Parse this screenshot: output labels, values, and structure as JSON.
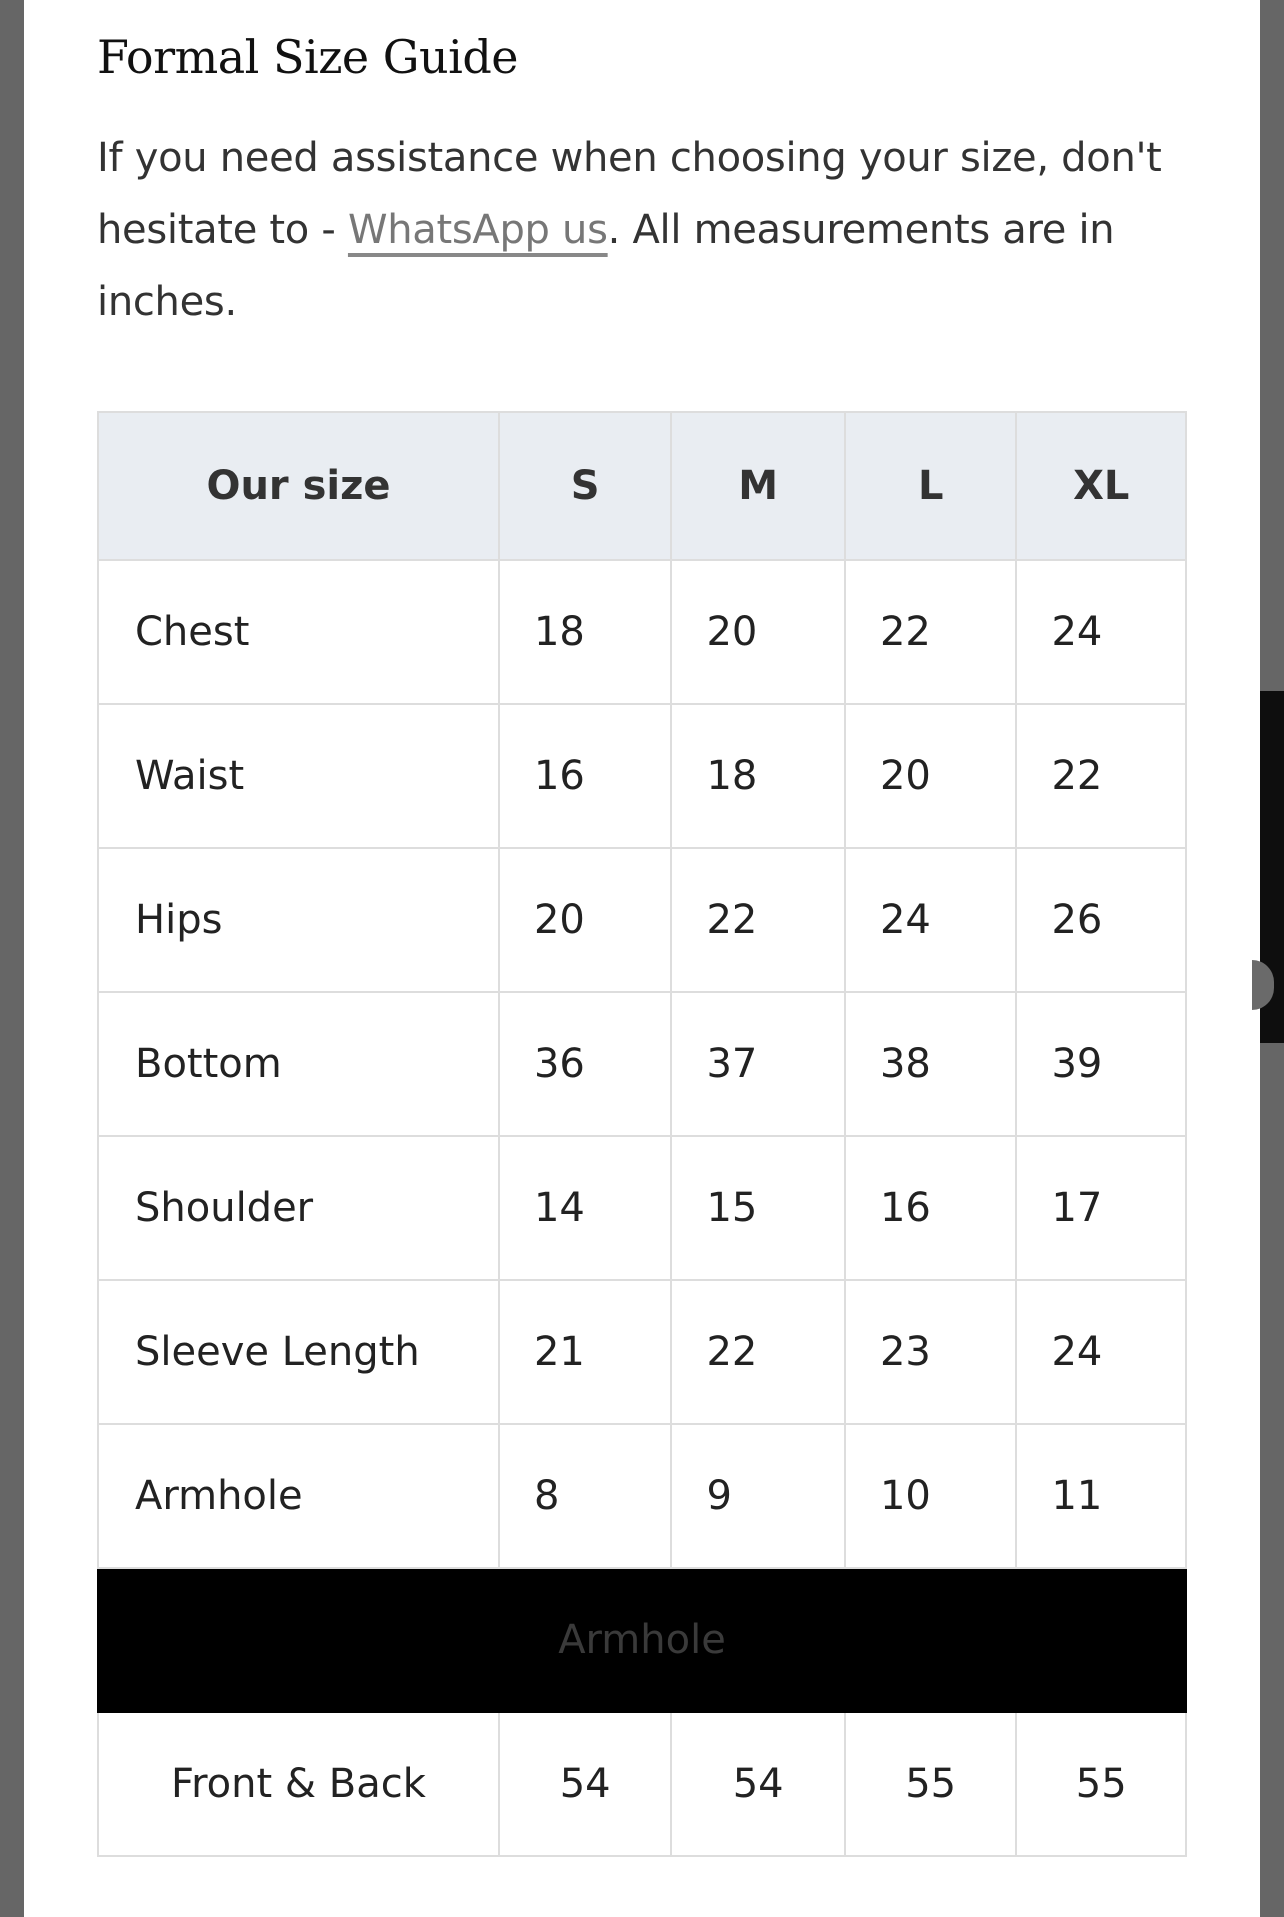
{
  "title": "Formal Size Guide",
  "intro": {
    "before": "If you need assistance when choosing your size, don't hesitate to - ",
    "link": "WhatsApp us",
    "after": ". All measurements are in inches."
  },
  "table": {
    "headers": [
      "Our size",
      "S",
      "M",
      "L",
      "XL"
    ],
    "rows": [
      {
        "label": "Chest",
        "values": [
          "18",
          "20",
          "22",
          "24"
        ]
      },
      {
        "label": "Waist",
        "values": [
          "16",
          "18",
          "20",
          "22"
        ]
      },
      {
        "label": "Hips",
        "values": [
          "20",
          "22",
          "24",
          "26"
        ]
      },
      {
        "label": "Bottom",
        "values": [
          "36",
          "37",
          "38",
          "39"
        ]
      },
      {
        "label": "Shoulder",
        "values": [
          "14",
          "15",
          "16",
          "17"
        ]
      },
      {
        "label": "Sleeve Length",
        "values": [
          "21",
          "22",
          "23",
          "24"
        ]
      },
      {
        "label": "Armhole",
        "values": [
          "8",
          "9",
          "10",
          "11"
        ]
      }
    ],
    "section": "Armhole",
    "extra_row": {
      "label": "Front & Back",
      "values": [
        "54",
        "54",
        "55",
        "55"
      ]
    }
  }
}
